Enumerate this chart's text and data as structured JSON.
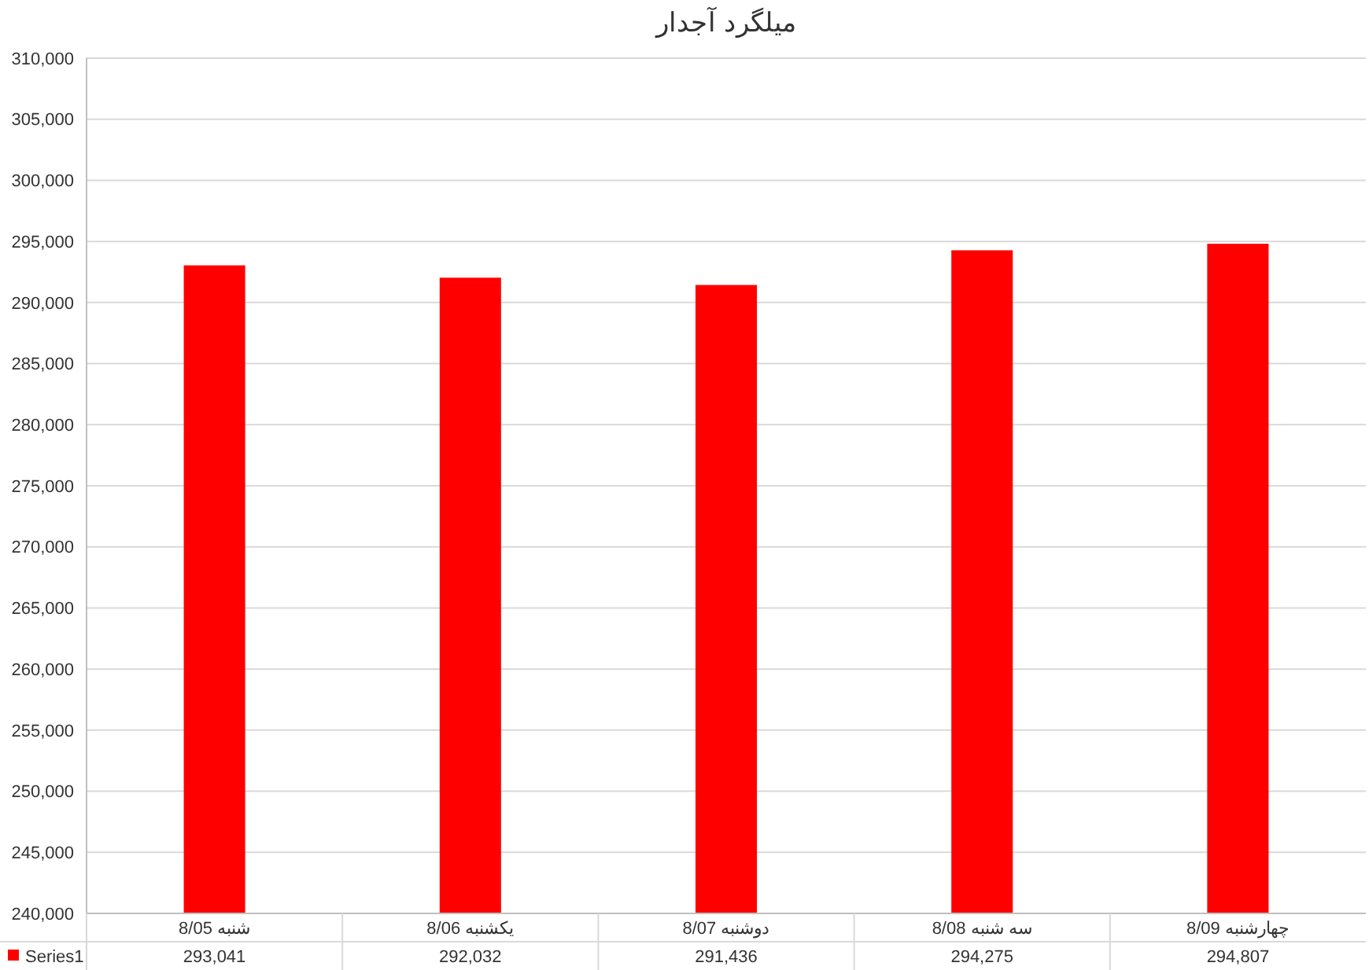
{
  "chart_data": {
    "type": "bar",
    "title": "میلگرد آجدار",
    "categories": [
      "شنبه 8/05",
      "یکشنبه 8/06",
      "دوشنبه 8/07",
      "سه شنبه 8/08",
      "چهارشنبه 8/09"
    ],
    "series": [
      {
        "name": "Series1",
        "color": "#ff0000",
        "values": [
          293041,
          292032,
          291436,
          294275,
          294807
        ],
        "value_labels": [
          "293,041",
          "292,032",
          "291,436",
          "294,275",
          "294,807"
        ]
      }
    ],
    "ylim": [
      240000,
      310000
    ],
    "yticks": [
      {
        "value": 240000,
        "label": "240,000"
      },
      {
        "value": 245000,
        "label": "245,000"
      },
      {
        "value": 250000,
        "label": "250,000"
      },
      {
        "value": 255000,
        "label": "255,000"
      },
      {
        "value": 260000,
        "label": "260,000"
      },
      {
        "value": 265000,
        "label": "265,000"
      },
      {
        "value": 270000,
        "label": "270,000"
      },
      {
        "value": 275000,
        "label": "275,000"
      },
      {
        "value": 280000,
        "label": "280,000"
      },
      {
        "value": 285000,
        "label": "285,000"
      },
      {
        "value": 290000,
        "label": "290,000"
      },
      {
        "value": 295000,
        "label": "295,000"
      },
      {
        "value": 300000,
        "label": "300,000"
      },
      {
        "value": 305000,
        "label": "305,000"
      },
      {
        "value": 310000,
        "label": "310,000"
      }
    ],
    "grid": "y",
    "legend": "bottom"
  }
}
